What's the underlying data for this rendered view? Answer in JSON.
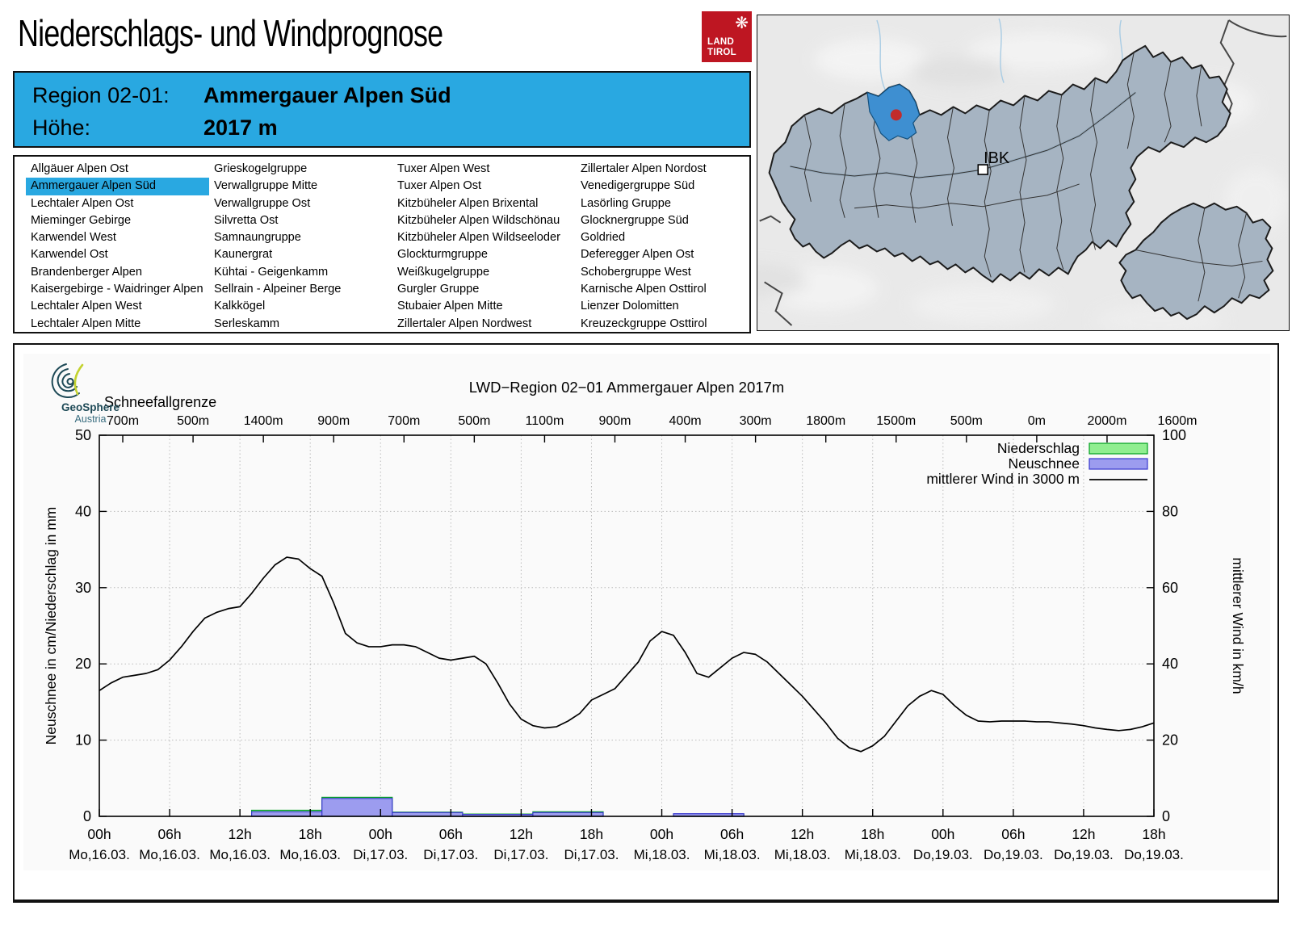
{
  "page": {
    "title": "Niederschlags- und Windprognose"
  },
  "land_tirol_logo": {
    "line1": "LAND",
    "line2": "TIROL",
    "color": "#BE1622",
    "emblem_icon": "snowflake-eagle"
  },
  "geosphere_logo": {
    "name": "GeoSphere",
    "country": "Austria"
  },
  "region_header": {
    "region_label": "Region 02-01:",
    "region_value": "Ammergauer Alpen Süd",
    "altitude_label": "Höhe:",
    "altitude_value": "2017 m",
    "background_color": "#29A8E1"
  },
  "region_list": {
    "selected": "Ammergauer Alpen Süd",
    "columns": [
      [
        "Allgäuer Alpen Ost",
        "Ammergauer Alpen Süd",
        "Lechtaler Alpen Ost",
        "Mieminger Gebirge",
        "Karwendel West",
        "Karwendel Ost",
        "Brandenberger Alpen",
        "Kaisergebirge - Waidringer Alpen",
        "Lechtaler Alpen West",
        "Lechtaler Alpen Mitte"
      ],
      [
        "Grieskogelgruppe",
        "Verwallgruppe Mitte",
        "Verwallgruppe Ost",
        "Silvretta Ost",
        "Samnaungruppe",
        "Kaunergrat",
        "Kühtai - Geigenkamm",
        "Sellrain - Alpeiner Berge",
        "Kalkkögel",
        "Serleskamm"
      ],
      [
        "Tuxer Alpen West",
        "Tuxer Alpen Ost",
        "Kitzbüheler Alpen Brixental",
        "Kitzbüheler Alpen Wildschönau",
        "Kitzbüheler Alpen Wildseeloder",
        "Glockturmgruppe",
        "Weißkugelgruppe",
        "Gurgler Gruppe",
        "Stubaier Alpen Mitte",
        "Zillertaler Alpen Nordwest"
      ],
      [
        "Zillertaler Alpen Nordost",
        "Venedigergruppe Süd",
        "Lasörling Gruppe",
        "Glocknergruppe Süd",
        "Goldried",
        "Deferegger Alpen Ost",
        "Schobergruppe West",
        "Karnische Alpen Osttirol",
        "Lienzer Dolomitten",
        "Kreuzeckgruppe Osttirol"
      ]
    ]
  },
  "map": {
    "city_label": "IBK",
    "highlight_color": "#3E8FD1",
    "marker_color": "#C22B2B",
    "region_fill": "#A6B4C2"
  },
  "chart_data": {
    "type": "mixed",
    "title": "LWD−Region 02−01 Ammergauer Alpen 2017m",
    "top_axis": {
      "label": "Schneefallgrenze",
      "values": [
        "700m",
        "500m",
        "1400m",
        "900m",
        "700m",
        "500m",
        "1100m",
        "900m",
        "400m",
        "300m",
        "1800m",
        "1500m",
        "500m",
        "0m",
        "2000m",
        "1600m"
      ]
    },
    "x_axis": {
      "hour_labels": [
        "00h",
        "06h",
        "12h",
        "18h",
        "00h",
        "06h",
        "12h",
        "18h",
        "00h",
        "06h",
        "12h",
        "18h",
        "00h",
        "06h",
        "12h",
        "18h"
      ],
      "day_labels": [
        "Mo,16.03.",
        "Mo,16.03.",
        "Mo,16.03.",
        "Mo,16.03.",
        "Di,17.03.",
        "Di,17.03.",
        "Di,17.03.",
        "Di,17.03.",
        "Mi,18.03.",
        "Mi,18.03.",
        "Mi,18.03.",
        "Mi,18.03.",
        "Do,19.03.",
        "Do,19.03.",
        "Do,19.03.",
        "Do,19.03."
      ]
    },
    "x_range_hours": [
      0,
      90
    ],
    "grid": true,
    "y_left": {
      "label": "Neuschnee in cm/Niederschlag in mm",
      "min": 0,
      "max": 50,
      "ticks": [
        0,
        10,
        20,
        30,
        40,
        50
      ]
    },
    "y_right": {
      "label": "mittlerer Wind in km/h",
      "min": 0,
      "max": 100,
      "ticks": [
        0,
        20,
        40,
        60,
        80,
        100
      ]
    },
    "legend": [
      {
        "label": "Niederschlag",
        "type": "box",
        "fill": "#90EE90",
        "stroke": "#00A020"
      },
      {
        "label": "Neuschnee",
        "type": "box",
        "fill": "#9C9CEF",
        "stroke": "#3A3ACF"
      },
      {
        "label": "mittlerer Wind in 3000 m",
        "type": "line",
        "stroke": "#000000"
      }
    ],
    "series": {
      "niederschlag_mm": {
        "name": "Niederschlag",
        "unit": "mm",
        "blocks": [
          {
            "from_hour": 13,
            "to_hour": 19,
            "value": 0.8
          },
          {
            "from_hour": 19,
            "to_hour": 25,
            "value": 2.5
          },
          {
            "from_hour": 25,
            "to_hour": 31,
            "value": 0.55
          },
          {
            "from_hour": 31,
            "to_hour": 37,
            "value": 0.3
          },
          {
            "from_hour": 37,
            "to_hour": 43,
            "value": 0.6
          },
          {
            "from_hour": 49,
            "to_hour": 55,
            "value": 0.3
          }
        ]
      },
      "neuschnee_cm": {
        "name": "Neuschnee",
        "unit": "cm",
        "blocks": [
          {
            "from_hour": 13,
            "to_hour": 19,
            "value": 0.6
          },
          {
            "from_hour": 19,
            "to_hour": 25,
            "value": 2.35
          },
          {
            "from_hour": 25,
            "to_hour": 31,
            "value": 0.5
          },
          {
            "from_hour": 31,
            "to_hour": 37,
            "value": 0.25
          },
          {
            "from_hour": 37,
            "to_hour": 43,
            "value": 0.5
          },
          {
            "from_hour": 49,
            "to_hour": 55,
            "value": 0.35
          }
        ]
      },
      "wind_kmh": {
        "name": "mittlerer Wind in 3000 m",
        "unit": "km/h",
        "hour_step": 1,
        "values": [
          33,
          35,
          36.5,
          37,
          37.5,
          38.5,
          41,
          44.5,
          48.5,
          52,
          53.5,
          54.5,
          55,
          58.5,
          62.5,
          66,
          68,
          67.5,
          65,
          63,
          56,
          48,
          45.5,
          44.5,
          44.5,
          45,
          45,
          44.5,
          43,
          41.5,
          41,
          41.5,
          42,
          40,
          35,
          29.5,
          25.5,
          23.8,
          23.2,
          23.5,
          25,
          27,
          30.5,
          32,
          33.5,
          37,
          40.5,
          46,
          48.5,
          47.5,
          43,
          37.5,
          36.5,
          39,
          41.5,
          43,
          42.5,
          40.5,
          37.5,
          34.5,
          31.5,
          28,
          24.5,
          20.5,
          18,
          17,
          18.5,
          21,
          25,
          29,
          31.5,
          33,
          32,
          29,
          26.5,
          25,
          24.8,
          25,
          25,
          25,
          24.8,
          24.8,
          24.5,
          24.2,
          23.8,
          23.2,
          22.8,
          22.5,
          22.8,
          23.5,
          24.5
        ]
      }
    }
  }
}
